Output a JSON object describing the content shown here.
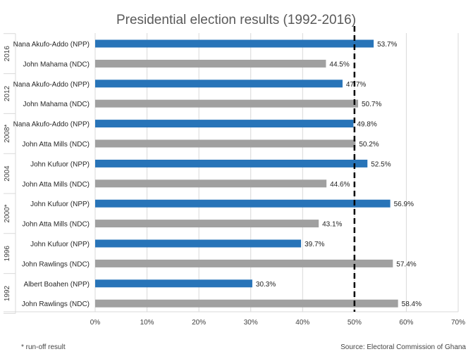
{
  "chart_data": {
    "type": "bar",
    "orientation": "horizontal",
    "title": "Presidential election results (1992-2016)",
    "xlabel": "",
    "ylabel": "",
    "xlim": [
      0,
      70
    ],
    "x_ticks": [
      0,
      10,
      20,
      30,
      40,
      50,
      60,
      70
    ],
    "tick_suffix": "%",
    "reference_line": {
      "value": 50,
      "style": "dashed"
    },
    "groups": [
      {
        "label": "2016",
        "bars": [
          {
            "candidate": "Nana Akufo-Addo (NPP)",
            "party": "NPP",
            "value": 53.7,
            "value_label": "53.7%"
          },
          {
            "candidate": "John Mahama (NDC)",
            "party": "NDC",
            "value": 44.5,
            "value_label": "44.5%"
          }
        ]
      },
      {
        "label": "2012",
        "bars": [
          {
            "candidate": "Nana Akufo-Addo (NPP)",
            "party": "NPP",
            "value": 47.7,
            "value_label": "47.7%"
          },
          {
            "candidate": "John Mahama (NDC)",
            "party": "NDC",
            "value": 50.7,
            "value_label": "50.7%"
          }
        ]
      },
      {
        "label": "2008*",
        "bars": [
          {
            "candidate": "Nana Akufo-Addo (NPP)",
            "party": "NPP",
            "value": 49.8,
            "value_label": "49.8%"
          },
          {
            "candidate": "John Atta Mills (NDC)",
            "party": "NDC",
            "value": 50.2,
            "value_label": "50.2%"
          }
        ]
      },
      {
        "label": "2004",
        "bars": [
          {
            "candidate": "John Kufuor (NPP)",
            "party": "NPP",
            "value": 52.5,
            "value_label": "52.5%"
          },
          {
            "candidate": "John Atta Mills (NDC)",
            "party": "NDC",
            "value": 44.6,
            "value_label": "44.6%"
          }
        ]
      },
      {
        "label": "2000*",
        "bars": [
          {
            "candidate": "John Kufuor (NPP)",
            "party": "NPP",
            "value": 56.9,
            "value_label": "56.9%"
          },
          {
            "candidate": "John Atta Mills (NDC)",
            "party": "NDC",
            "value": 43.1,
            "value_label": "43.1%"
          }
        ]
      },
      {
        "label": "1996",
        "bars": [
          {
            "candidate": "John Kufuor (NPP)",
            "party": "NPP",
            "value": 39.7,
            "value_label": "39.7%"
          },
          {
            "candidate": "John Rawlings (NDC)",
            "party": "NDC",
            "value": 57.4,
            "value_label": "57.4%"
          }
        ]
      },
      {
        "label": "1992",
        "bars": [
          {
            "candidate": "Albert Boahen (NPP)",
            "party": "NPP",
            "value": 30.3,
            "value_label": "30.3%"
          },
          {
            "candidate": "John Rawlings (NDC)",
            "party": "NDC",
            "value": 58.4,
            "value_label": "58.4%"
          }
        ]
      }
    ],
    "colors": {
      "NPP": "#2874b8",
      "NDC": "#a0a0a0"
    }
  },
  "footnote": "* run-off result",
  "source": "Source: Electoral Commission of Ghana"
}
